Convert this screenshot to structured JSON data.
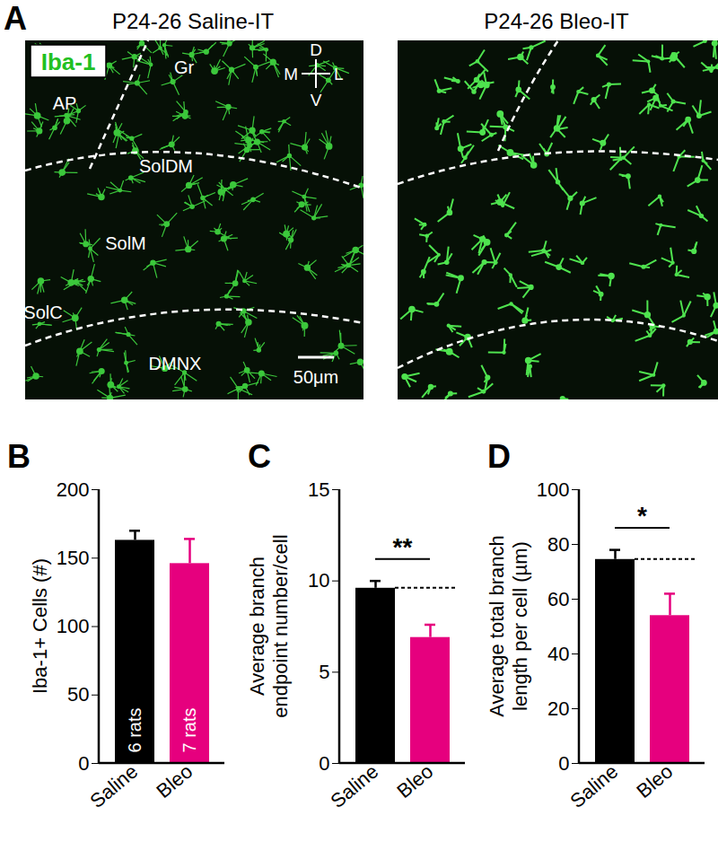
{
  "panel_a": {
    "panel": "A",
    "titles": [
      "P24-26 Saline-IT",
      "P24-26 Bleo-IT"
    ],
    "stain": "Iba-1",
    "regions": [
      "Gr",
      "AP",
      "SolDM",
      "SolM",
      "SolC",
      "DMNX"
    ],
    "compass": [
      "D",
      "M",
      "L",
      "V"
    ],
    "scale_bar": "50μm"
  },
  "chart_data": [
    {
      "type": "bar",
      "panel": "B",
      "ylabel": "Iba-1+ Cells (#)",
      "categories": [
        "Saline",
        "Bleo"
      ],
      "values": [
        163,
        146
      ],
      "errors": [
        7,
        18
      ],
      "colors": [
        "#000000",
        "#e6007e"
      ],
      "ylim": [
        0,
        200
      ],
      "yticks": [
        0,
        50,
        100,
        150,
        200
      ],
      "bar_texts": [
        "6 rats",
        "7 rats"
      ]
    },
    {
      "type": "bar",
      "panel": "C",
      "ylabel": "Average branch\nendpoint number/cell",
      "categories": [
        "Saline",
        "Bleo"
      ],
      "values": [
        9.6,
        6.9
      ],
      "errors": [
        0.4,
        0.7
      ],
      "colors": [
        "#000000",
        "#e6007e"
      ],
      "ylim": [
        0,
        15
      ],
      "yticks": [
        0,
        5,
        10,
        15
      ],
      "annotations": [
        "**"
      ]
    },
    {
      "type": "bar",
      "panel": "D",
      "ylabel": "Average total branch\nlength per cell (µm)",
      "categories": [
        "Saline",
        "Bleo"
      ],
      "values": [
        74.5,
        54
      ],
      "errors": [
        3.5,
        8
      ],
      "colors": [
        "#000000",
        "#e6007e"
      ],
      "ylim": [
        0,
        100
      ],
      "yticks": [
        0,
        20,
        40,
        60,
        80,
        100
      ],
      "annotations": [
        "*"
      ]
    }
  ]
}
